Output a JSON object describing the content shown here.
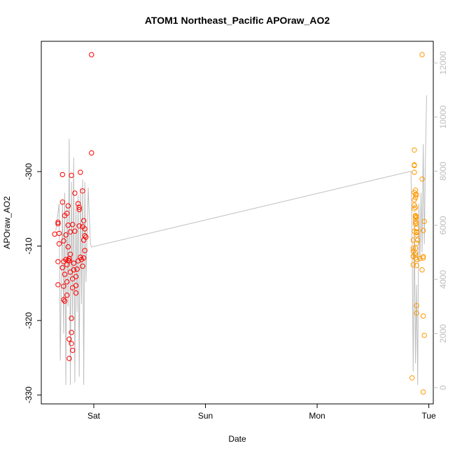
{
  "chart_data": {
    "type": "scatter",
    "title": "ATOM1 Northeast_Pacific APOraw_AO2",
    "xlabel": "Date",
    "ylabel": "APOraw_AO2",
    "x_ticks": [
      "Sat",
      "Sun",
      "Mon",
      "Tue"
    ],
    "x_tick_values": [
      1,
      2,
      3,
      4
    ],
    "xlim": [
      0.53,
      4.04
    ],
    "ylim": [
      -331.2,
      -282.5
    ],
    "y_ticks": [
      -330,
      -320,
      -310,
      -300
    ],
    "y2_ticks": [
      0,
      2000,
      4000,
      6000,
      8000,
      10000,
      12000
    ],
    "y2lim": [
      -600,
      12800
    ],
    "colors": {
      "group1": "#ff0000",
      "group2": "#ff9900",
      "line": "#bebebe"
    },
    "series": [
      {
        "color_key": "group1",
        "points": [
          [
            0.65,
            -308.4
          ],
          [
            0.68,
            -315.2
          ],
          [
            0.68,
            -306.8
          ],
          [
            0.68,
            -312.1
          ],
          [
            0.68,
            -307.0
          ],
          [
            0.69,
            -309.7
          ],
          [
            0.69,
            -308.3
          ],
          [
            0.72,
            -300.4
          ],
          [
            0.72,
            -304.1
          ],
          [
            0.72,
            -312.9
          ],
          [
            0.73,
            -317.2
          ],
          [
            0.73,
            -315.4
          ],
          [
            0.73,
            -312.1
          ],
          [
            0.73,
            -309.3
          ],
          [
            0.74,
            -317.4
          ],
          [
            0.74,
            -305.9
          ],
          [
            0.74,
            -313.8
          ],
          [
            0.75,
            -311.8
          ],
          [
            0.75,
            -308.5
          ],
          [
            0.76,
            -305.6
          ],
          [
            0.76,
            -312.5
          ],
          [
            0.76,
            -316.6
          ],
          [
            0.76,
            -314.8
          ],
          [
            0.77,
            -311.9
          ],
          [
            0.77,
            -307.2
          ],
          [
            0.77,
            -304.6
          ],
          [
            0.77,
            -310.1
          ],
          [
            0.78,
            -312.0
          ],
          [
            0.78,
            -311.7
          ],
          [
            0.78,
            -322.5
          ],
          [
            0.78,
            -325.1
          ],
          [
            0.79,
            -313.5
          ],
          [
            0.79,
            -308.1
          ],
          [
            0.79,
            -311.1
          ],
          [
            0.8,
            -300.5
          ],
          [
            0.8,
            -319.7
          ],
          [
            0.8,
            -321.6
          ],
          [
            0.8,
            -323.1
          ],
          [
            0.81,
            -324.0
          ],
          [
            0.81,
            -315.6
          ],
          [
            0.81,
            -314.4
          ],
          [
            0.81,
            -307.1
          ],
          [
            0.82,
            -313.2
          ],
          [
            0.82,
            -312.3
          ],
          [
            0.83,
            -308.0
          ],
          [
            0.83,
            -302.9
          ],
          [
            0.84,
            -314.1
          ],
          [
            0.84,
            -315.3
          ],
          [
            0.84,
            -316.3
          ],
          [
            0.85,
            -313.1
          ],
          [
            0.86,
            -304.3
          ],
          [
            0.86,
            -312.0
          ],
          [
            0.87,
            -307.3
          ],
          [
            0.87,
            -304.8
          ],
          [
            0.87,
            -305.1
          ],
          [
            0.88,
            -300.1
          ],
          [
            0.88,
            -311.5
          ],
          [
            0.89,
            -311.8
          ],
          [
            0.9,
            -307.4
          ],
          [
            0.9,
            -312.7
          ],
          [
            0.9,
            -302.6
          ],
          [
            0.91,
            -306.6
          ],
          [
            0.91,
            -309.2
          ],
          [
            0.91,
            -311.6
          ],
          [
            0.92,
            -310.6
          ],
          [
            0.92,
            -308.6
          ],
          [
            0.92,
            -307.7
          ],
          [
            0.93,
            -308.8
          ],
          [
            0.98,
            -284.3
          ],
          [
            0.98,
            -297.5
          ]
        ]
      },
      {
        "color_key": "group2",
        "points": [
          [
            3.85,
            -327.7
          ],
          [
            3.86,
            -312.5
          ],
          [
            3.86,
            -310.7
          ],
          [
            3.86,
            -310.3
          ],
          [
            3.86,
            -309.2
          ],
          [
            3.86,
            -311.4
          ],
          [
            3.87,
            -304.5
          ],
          [
            3.87,
            -305.0
          ],
          [
            3.87,
            -303.8
          ],
          [
            3.87,
            -308.0
          ],
          [
            3.87,
            -302.8
          ],
          [
            3.87,
            -297.1
          ],
          [
            3.87,
            -299.2
          ],
          [
            3.87,
            -299.1
          ],
          [
            3.87,
            -300.1
          ],
          [
            3.88,
            -306.7
          ],
          [
            3.88,
            -303.5
          ],
          [
            3.88,
            -304.8
          ],
          [
            3.88,
            -306.2
          ],
          [
            3.88,
            -307.0
          ],
          [
            3.88,
            -310.9
          ],
          [
            3.88,
            -311.2
          ],
          [
            3.88,
            -302.5
          ],
          [
            3.88,
            -303.1
          ],
          [
            3.88,
            -306.0
          ],
          [
            3.88,
            -310.3
          ],
          [
            3.88,
            -311.6
          ],
          [
            3.88,
            -305.9
          ],
          [
            3.89,
            -311.8
          ],
          [
            3.89,
            -306.9
          ],
          [
            3.89,
            -309.6
          ],
          [
            3.89,
            -306.1
          ],
          [
            3.89,
            -318.0
          ],
          [
            3.89,
            -307.6
          ],
          [
            3.89,
            -319.0
          ],
          [
            3.89,
            -308.5
          ],
          [
            3.89,
            -312.6
          ],
          [
            3.89,
            -308.1
          ],
          [
            3.89,
            -308.1
          ],
          [
            3.89,
            -303.1
          ],
          [
            3.89,
            -308.2
          ],
          [
            3.9,
            -309.2
          ],
          [
            3.92,
            -311.7
          ],
          [
            3.94,
            -313.2
          ],
          [
            3.94,
            -301.0
          ],
          [
            3.94,
            -284.3
          ],
          [
            3.95,
            -311.6
          ],
          [
            3.95,
            -307.9
          ],
          [
            3.95,
            -329.6
          ],
          [
            3.95,
            -311.4
          ],
          [
            3.95,
            -319.4
          ],
          [
            3.96,
            -322.0
          ],
          [
            3.96,
            -306.7
          ]
        ]
      }
    ],
    "right_axis_line": [
      [
        0.66,
        5800
      ],
      [
        0.69,
        6800
      ],
      [
        0.7,
        1000
      ],
      [
        0.72,
        6900
      ],
      [
        0.73,
        2000
      ],
      [
        0.74,
        7200
      ],
      [
        0.75,
        100
      ],
      [
        0.76,
        6700
      ],
      [
        0.77,
        3000
      ],
      [
        0.78,
        9200
      ],
      [
        0.79,
        100
      ],
      [
        0.8,
        7600
      ],
      [
        0.81,
        2500
      ],
      [
        0.82,
        8500
      ],
      [
        0.83,
        200
      ],
      [
        0.84,
        6800
      ],
      [
        0.85,
        2800
      ],
      [
        0.86,
        7100
      ],
      [
        0.87,
        400
      ],
      [
        0.88,
        7400
      ],
      [
        0.89,
        3100
      ],
      [
        0.9,
        7700
      ],
      [
        0.91,
        100
      ],
      [
        0.92,
        7600
      ],
      [
        0.93,
        3900
      ],
      [
        0.95,
        7400
      ],
      [
        0.97,
        5300
      ],
      [
        0.98,
        5200
      ],
      [
        3.84,
        8000
      ],
      [
        3.85,
        5500
      ],
      [
        3.86,
        600
      ],
      [
        3.87,
        6200
      ],
      [
        3.88,
        900
      ],
      [
        3.89,
        3800
      ],
      [
        3.9,
        100
      ],
      [
        3.91,
        6800
      ],
      [
        3.92,
        4700
      ],
      [
        3.93,
        7200
      ],
      [
        3.94,
        5000
      ],
      [
        3.95,
        9000
      ],
      [
        3.96,
        5300
      ],
      [
        3.97,
        8500
      ],
      [
        3.98,
        10800
      ]
    ]
  }
}
